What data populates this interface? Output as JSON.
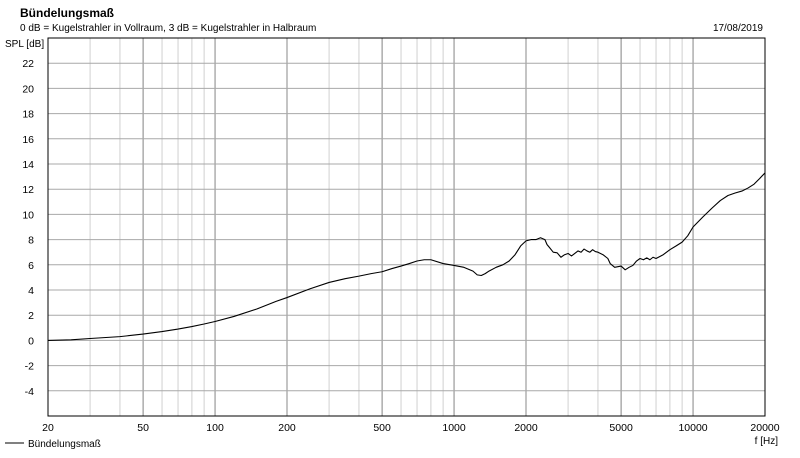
{
  "chart_data": {
    "type": "line",
    "title": "Bündelungsmaß",
    "subtitle": "0 dB = Kugelstrahler in Vollraum, 3 dB = Kugelstrahler in Halbraum",
    "date": "17/08/2019",
    "ylabel": "SPL [dB]",
    "xlabel": "f [Hz]",
    "x_scale": "log",
    "xlim": [
      20,
      20000
    ],
    "ylim": [
      -6,
      24
    ],
    "grid": true,
    "legend_position": "bottom-left",
    "x_tick_labels": [
      "20",
      "50",
      "100",
      "200",
      "500",
      "1000",
      "2000",
      "5000",
      "10000",
      "20000"
    ],
    "y_tick_labels": [
      "22",
      "20",
      "18",
      "16",
      "14",
      "12",
      "10",
      "8",
      "6",
      "4",
      "2",
      "0",
      "-2",
      "-4"
    ],
    "series": [
      {
        "name": "Bündelungsmaß",
        "color": "#000000",
        "x": [
          20,
          25,
          30,
          40,
          50,
          60,
          70,
          80,
          90,
          100,
          120,
          150,
          180,
          200,
          250,
          300,
          350,
          400,
          450,
          500,
          550,
          600,
          650,
          700,
          750,
          800,
          900,
          1000,
          1100,
          1200,
          1250,
          1300,
          1350,
          1400,
          1500,
          1600,
          1700,
          1800,
          1900,
          2000,
          2100,
          2200,
          2300,
          2400,
          2450,
          2500,
          2600,
          2700,
          2800,
          2900,
          3000,
          3100,
          3200,
          3300,
          3400,
          3500,
          3600,
          3700,
          3800,
          3900,
          4000,
          4200,
          4400,
          4500,
          4700,
          5000,
          5200,
          5400,
          5600,
          5800,
          6000,
          6200,
          6400,
          6600,
          6800,
          7000,
          7500,
          8000,
          8500,
          9000,
          9500,
          10000,
          11000,
          12000,
          13000,
          14000,
          15000,
          16000,
          17000,
          18000,
          19000,
          20000
        ],
        "y": [
          0.0,
          0.05,
          0.15,
          0.3,
          0.5,
          0.7,
          0.9,
          1.1,
          1.3,
          1.5,
          1.9,
          2.5,
          3.1,
          3.4,
          4.1,
          4.6,
          4.9,
          5.1,
          5.3,
          5.45,
          5.7,
          5.9,
          6.1,
          6.3,
          6.4,
          6.4,
          6.1,
          5.95,
          5.8,
          5.5,
          5.2,
          5.15,
          5.3,
          5.5,
          5.8,
          6.0,
          6.3,
          6.8,
          7.5,
          7.9,
          8.0,
          8.0,
          8.15,
          8.0,
          7.6,
          7.4,
          7.0,
          6.95,
          6.6,
          6.8,
          6.9,
          6.7,
          6.9,
          7.1,
          7.0,
          7.25,
          7.1,
          7.0,
          7.2,
          7.05,
          7.0,
          6.8,
          6.5,
          6.1,
          5.8,
          5.9,
          5.6,
          5.8,
          5.95,
          6.3,
          6.5,
          6.4,
          6.55,
          6.4,
          6.6,
          6.5,
          6.8,
          7.2,
          7.5,
          7.8,
          8.3,
          9.0,
          9.8,
          10.5,
          11.1,
          11.5,
          11.7,
          11.85,
          12.1,
          12.4,
          12.85,
          13.3
        ]
      }
    ]
  }
}
